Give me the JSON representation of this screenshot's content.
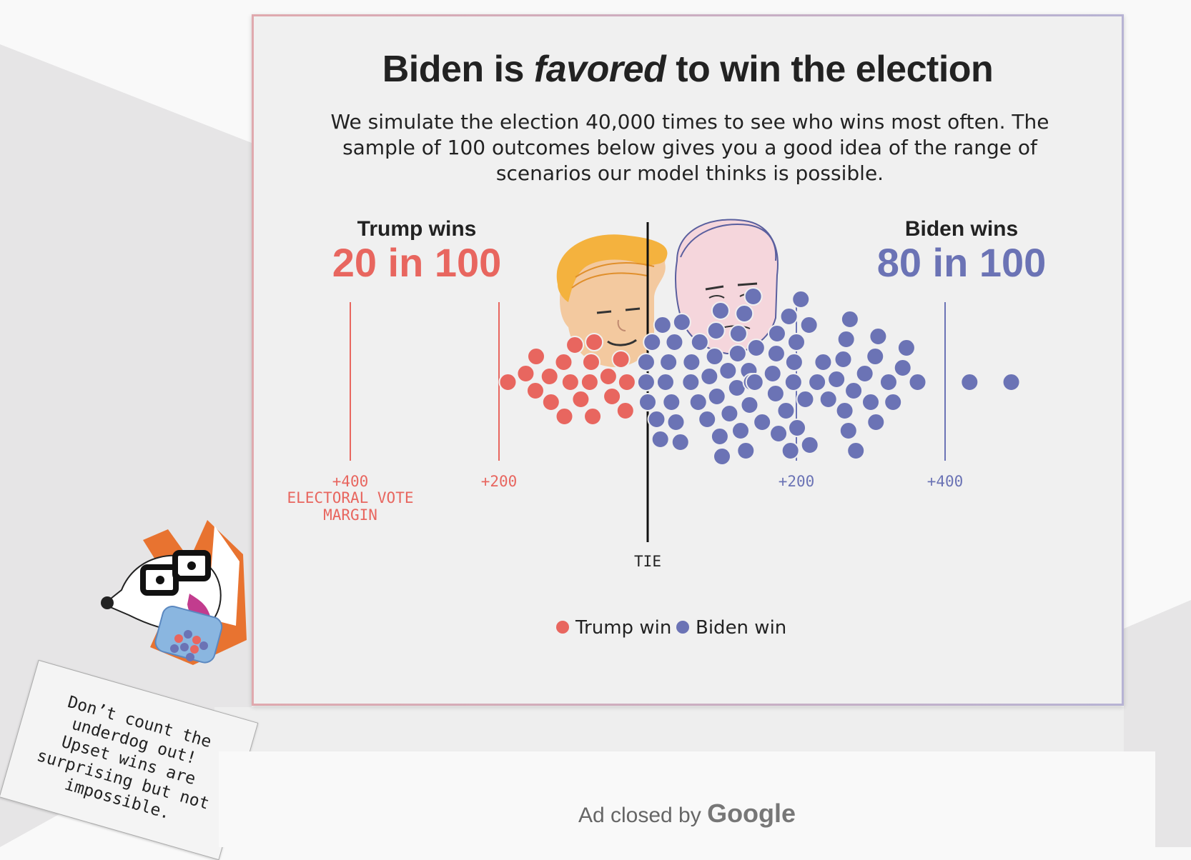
{
  "page": {
    "title_before": "Biden is",
    "title_emph": "favored",
    "title_after": "to win the election",
    "subtitle": "We simulate the election 40,000 times to see who wins most often. The sample of 100 outcomes below gives you a good idea of the range of scenarios our model thinks is possible."
  },
  "chart_data": {
    "type": "scatter",
    "title": "Biden is favored to win the election",
    "x_axis": {
      "label": "ELECTORAL VOTE MARGIN",
      "ticks": [
        {
          "value": -400,
          "label": "+400",
          "side": "trump"
        },
        {
          "value": -200,
          "label": "+200",
          "side": "trump"
        },
        {
          "value": 200,
          "label": "+200",
          "side": "biden"
        },
        {
          "value": 400,
          "label": "+400",
          "side": "biden"
        }
      ],
      "tie_label": "TIE",
      "range": [
        -470,
        520
      ]
    },
    "trump": {
      "heading": "Trump wins",
      "count_text": "20 in 100",
      "color": "#e8665f"
    },
    "biden": {
      "heading": "Biden wins",
      "count_text": "80 in 100",
      "color": "#6b73b5"
    },
    "legend": [
      {
        "name": "Trump win",
        "color": "#e8665f"
      },
      {
        "name": "Biden win",
        "color": "#6b73b5"
      }
    ],
    "series": [
      {
        "name": "Trump win",
        "margins": [
          -188,
          -164,
          -150,
          -151,
          -132,
          -130,
          -112,
          -113,
          -98,
          -104,
          -90,
          -78,
          -74,
          -76,
          -72,
          -53,
          -48,
          -36,
          -28,
          -30
        ]
      },
      {
        "name": "Biden win",
        "margins": [
          -2,
          -2,
          0,
          6,
          12,
          17,
          20,
          24,
          28,
          32,
          36,
          38,
          44,
          46,
          58,
          59,
          68,
          70,
          80,
          83,
          90,
          92,
          93,
          97,
          98,
          100,
          108,
          110,
          120,
          121,
          122,
          125,
          130,
          132,
          136,
          137,
          140,
          142,
          144,
          146,
          154,
          168,
          173,
          172,
          174,
          176,
          186,
          190,
          192,
          196,
          197,
          200,
          201,
          206,
          212,
          217,
          218,
          228,
          236,
          243,
          254,
          263,
          265,
          267,
          270,
          272,
          277,
          280,
          292,
          300,
          306,
          307,
          310,
          324,
          330,
          343,
          348,
          363,
          433,
          489
        ]
      }
    ]
  },
  "mascot": {
    "note_lines": [
      "Don’t count the",
      "underdog out!",
      "Upset wins are",
      "surprising but not",
      "impossible."
    ]
  },
  "ad": {
    "text": "Ad closed by",
    "brand": "Google"
  }
}
